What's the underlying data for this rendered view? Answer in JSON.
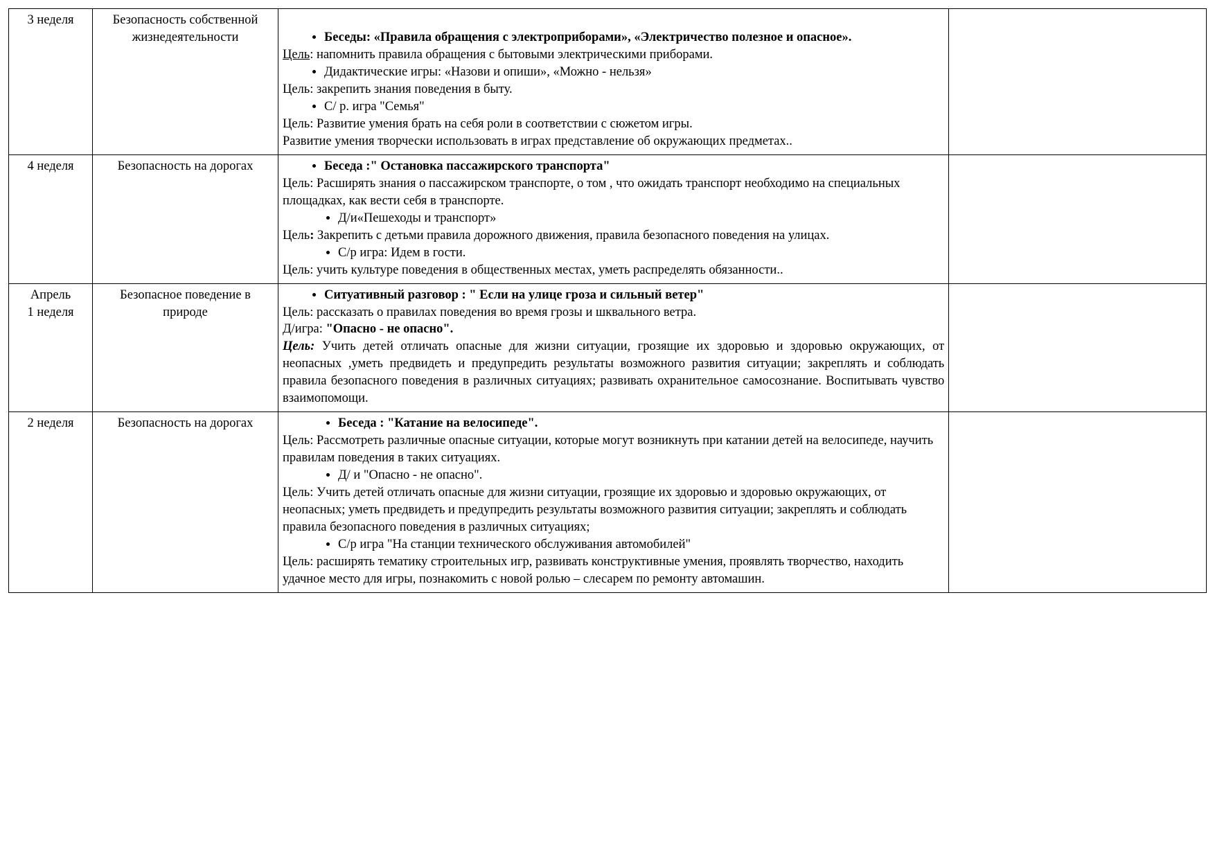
{
  "rows": [
    {
      "week": "3 неделя",
      "topic": "Безопасность собственной жизнедеятельности",
      "c": {
        "b1": "Беседы: «Правила обращения с электроприборами», «Электричество полезное и опасное».",
        "g1a": "Цель",
        "g1b": ": напомнить  правила обращения с бытовыми электрическими приборами.",
        "d1": "Дидактические игры: «Назови и опиши», «Можно - нельзя»",
        "g2": "Цель: закрепить знания поведения в быту.",
        "sr": "С/ р. игра \"Семья\"",
        "g3": "Цель: Развитие умения брать на себя роли в соответствии с сюжетом игры.",
        "g4": "Развитие умения творчески использовать в играх представление об окружающих предметах.."
      }
    },
    {
      "week": "4 неделя",
      "topic": "Безопасность на дорогах",
      "c": {
        "b1": "Беседа :\" Остановка пассажирского транспорта\"",
        "g1": "Цель: Расширять знания о пассажирском транспорте,  о том , что ожидать транспорт необходимо на специальных площадках, как вести себя в транспорте.",
        "d1": "Д/и«Пешеходы и транспорт»",
        "g2a": "Цель",
        "g2b": " Закрепить с детьми правила дорожного движения, правила безопасного поведения на улицах.",
        "sr": "С/р игра: Идем в гости.",
        "g3": "Цель: учить культуре поведения в общественных местах, уметь  распределять  обязанности.."
      }
    },
    {
      "week1": "Апрель",
      "week2": "1 неделя",
      "topic": "Безопасное поведение в природе",
      "c": {
        "b1": "Ситуативный разговор : \" Если на улице гроза и сильный ветер\"",
        "g1": "Цель: рассказать о правилах поведения во время грозы и шквального ветра.",
        "d1a": "Д/игра: ",
        "d1b": "\"Опасно - не опасно\".",
        "g2a": "Цель:",
        "g2b": "  Учить детей отличать опасные для жизни ситуации, грозящие их здоровью  и здоровью окружающих, от неопасных ,уметь предвидеть и  предупредить  результаты возможного развития ситуации;  закреплять и соблюдать правила безопасного поведения в различных ситуациях;  развивать охранительное самосознание. Воспитывать чувство взаимопомощи."
      }
    },
    {
      "week": "2 неделя",
      "topic": "Безопасность на дорогах",
      "c": {
        "b1": "Беседа :  \"Катание на велосипеде\".",
        "g1": "Цель: Рассмотреть различные опасные ситуации, которые могут возникнуть при катании детей на велосипеде, научить правилам поведения в таких ситуациях.",
        "d1": "Д/ и  \"Опасно - не опасно\".",
        "g2": "Цель:  Учить детей отличать опасные для жизни ситуации, грозящие их здоровью  и здоровью окружающих, от неопасных;  уметь предвидеть и  предупредить  результаты возможного развития ситуации;  закреплять и соблюдать правила безопасного поведения в различных ситуациях;",
        "sr": "С/р игра \"На станции технического обслуживания автомобилей\"",
        "g3": "Цель: расширять тематику строительных игр, развивать конструктивные умения, проявлять творчество, находить удачное место для игры, познакомить с новой ролью – слесарем по ремонту автомашин."
      }
    }
  ]
}
